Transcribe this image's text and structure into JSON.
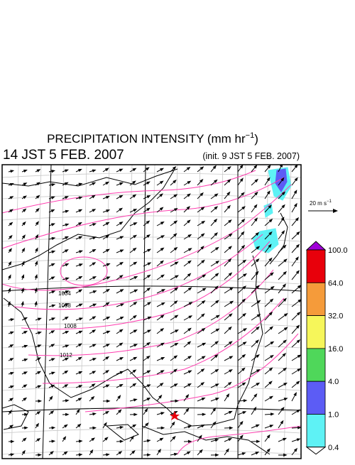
{
  "header": {
    "title": "PRECIPITATION INTENSITY (mm hr",
    "title_sup": "−1",
    "title_close": ")",
    "valid_time": "14 JST 5 FEB. 2007",
    "init_time": "(init. 9 JST 5 FEB. 2007)"
  },
  "wind_scale": {
    "label": "20 m s",
    "label_sup": "−1"
  },
  "isobar_labels": [
    "1004",
    "1008",
    "1008",
    "1012"
  ],
  "colorbar": {
    "labels": [
      "100.0",
      "64.0",
      "32.0",
      "16.0",
      "4.0",
      "1.0",
      "0.4"
    ],
    "colors": [
      "#e8000b",
      "#f59b3a",
      "#f6f65a",
      "#4fd75a",
      "#5c5cf5",
      "#5ef2f5"
    ],
    "over_color": "#a000d8",
    "under_color": "#ffffff"
  }
}
